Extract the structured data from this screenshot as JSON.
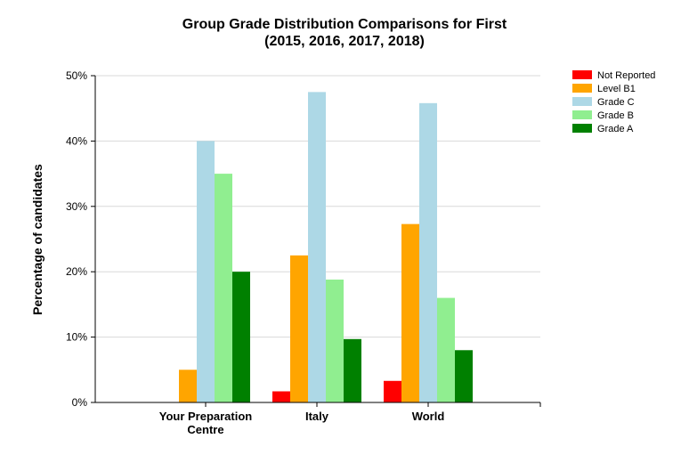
{
  "chart_data": {
    "type": "bar",
    "title": "Group Grade Distribution Comparisons for First",
    "subtitle": "(2015, 2016, 2017, 2018)",
    "xlabel": "",
    "ylabel": "Percentage of candidates",
    "ylim": [
      0,
      50
    ],
    "yticks": [
      "0%",
      "10%",
      "20%",
      "30%",
      "40%",
      "50%"
    ],
    "grid": true,
    "legend_position": "top-right",
    "categories": [
      "Your Preparation Centre",
      "Italy",
      "World"
    ],
    "category_labels": [
      [
        "Your Preparation",
        "Centre"
      ],
      [
        "Italy"
      ],
      [
        "World"
      ]
    ],
    "series": [
      {
        "name": "Not Reported",
        "color": "#ff0000",
        "values": [
          0,
          1.7,
          3.3
        ]
      },
      {
        "name": "Level B1",
        "color": "#ffa500",
        "values": [
          5.0,
          22.5,
          27.3
        ]
      },
      {
        "name": "Grade C",
        "color": "#add8e6",
        "values": [
          40.0,
          47.5,
          45.8
        ]
      },
      {
        "name": "Grade B",
        "color": "#90ee90",
        "values": [
          35.0,
          18.8,
          16.0
        ]
      },
      {
        "name": "Grade A",
        "color": "#008000",
        "values": [
          20.0,
          9.7,
          8.0
        ]
      }
    ]
  }
}
